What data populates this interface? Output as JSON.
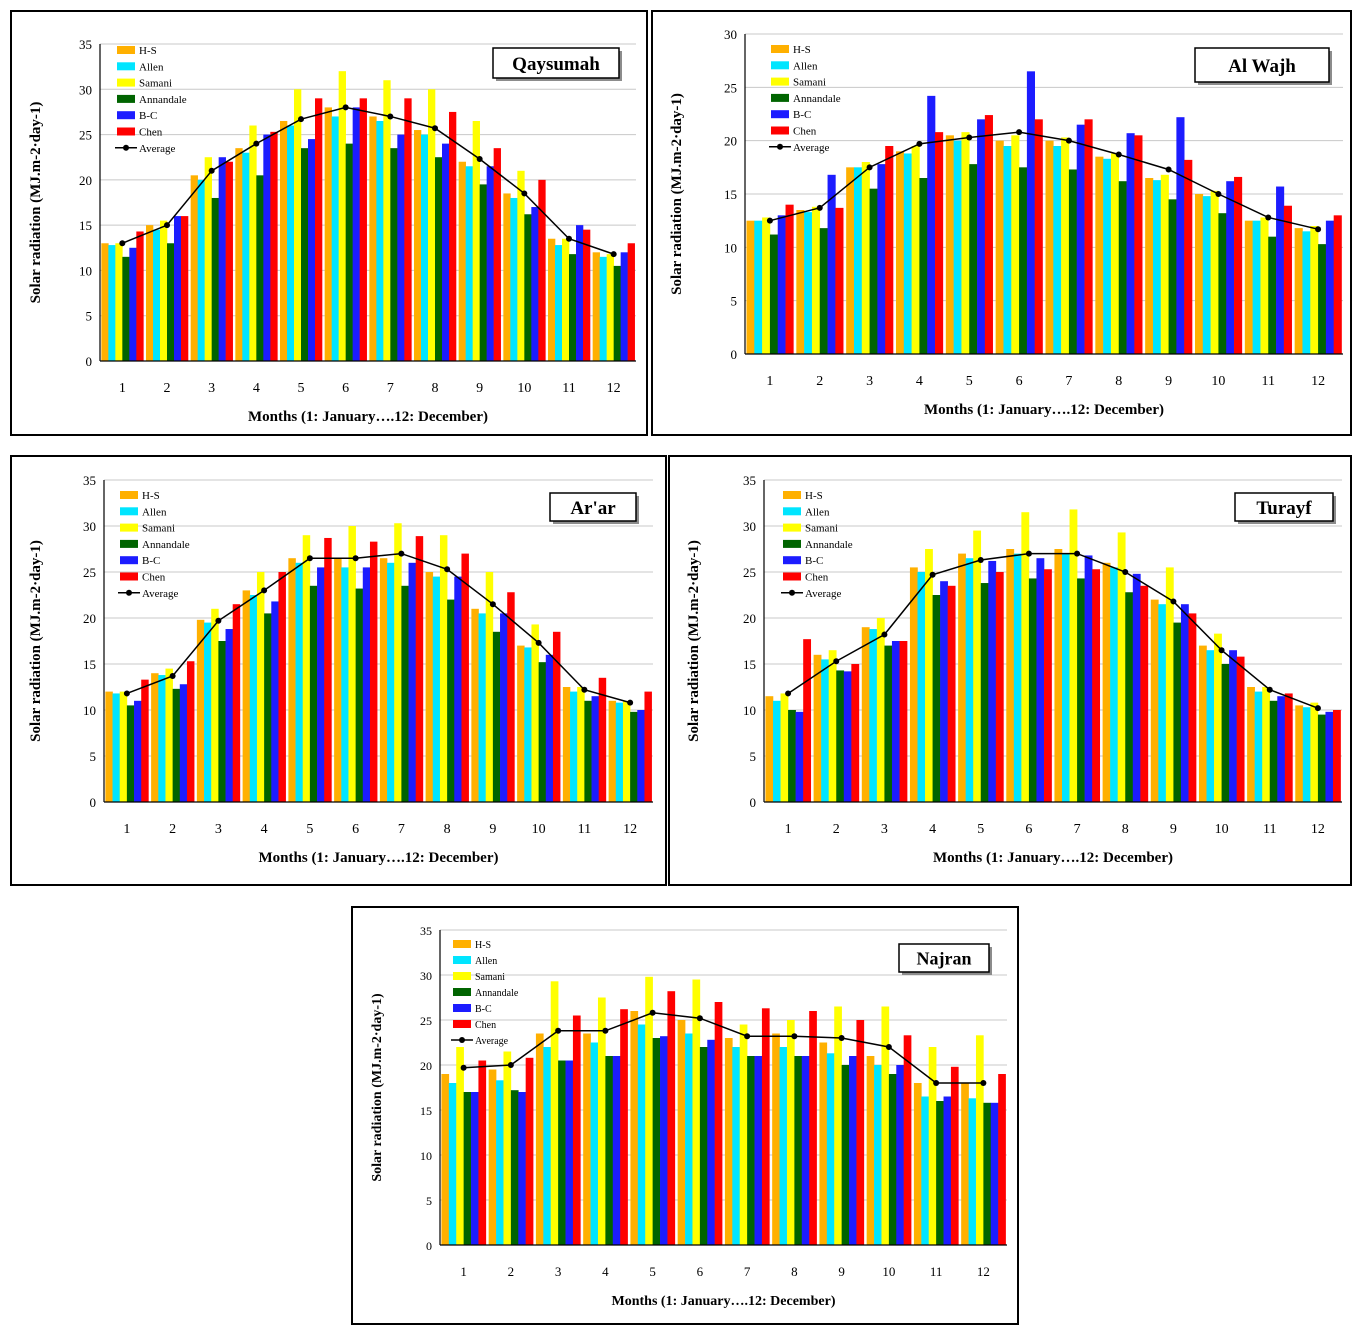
{
  "legend_labels": [
    "H-S",
    "Allen",
    "Samani",
    "Annandale",
    "B-C",
    "Chen",
    "Average"
  ],
  "series_colors": [
    "#FFB000",
    "#00E5FF",
    "#FFFF00",
    "#006400",
    "#1C1CFF",
    "#FF0000",
    "#000000"
  ],
  "chart_data": [
    {
      "type": "bar",
      "title": "Qaysumah",
      "xlabel": "Months (1: January….12:  December)",
      "ylabel": "Solar radiation (MJ.m-2·day-1)",
      "ylim": [
        0,
        35
      ],
      "yticks": [
        "0",
        "5",
        "10",
        "15",
        "20",
        "25",
        "30",
        "35"
      ],
      "categories": [
        "1",
        "2",
        "3",
        "4",
        "5",
        "6",
        "7",
        "8",
        "9",
        "10",
        "11",
        "12"
      ],
      "grid": true,
      "legend_position": "top-left",
      "series": [
        {
          "name": "H-S",
          "values": [
            13.0,
            15.0,
            20.5,
            23.5,
            26.5,
            28.0,
            27.0,
            25.5,
            22.0,
            18.5,
            13.5,
            12.0
          ]
        },
        {
          "name": "Allen",
          "values": [
            12.8,
            14.5,
            20.0,
            23.0,
            26.0,
            27.0,
            26.5,
            25.0,
            21.5,
            18.0,
            12.8,
            11.5
          ]
        },
        {
          "name": "Samani",
          "values": [
            13.0,
            15.5,
            22.5,
            26.0,
            30.0,
            32.0,
            31.0,
            30.0,
            26.5,
            21.0,
            13.5,
            11.8
          ]
        },
        {
          "name": "Annandale",
          "values": [
            11.5,
            13.0,
            18.0,
            20.5,
            23.5,
            24.0,
            23.5,
            22.5,
            19.5,
            16.2,
            11.8,
            10.5
          ]
        },
        {
          "name": "B-C",
          "values": [
            12.5,
            16.0,
            22.5,
            25.0,
            24.5,
            28.0,
            25.0,
            24.0,
            21.5,
            17.0,
            15.0,
            12.0
          ]
        },
        {
          "name": "Chen",
          "values": [
            14.3,
            16.0,
            22.0,
            25.3,
            29.0,
            29.0,
            29.0,
            27.5,
            23.5,
            20.0,
            14.5,
            13.0
          ]
        },
        {
          "name": "Average",
          "type": "line",
          "values": [
            13.0,
            15.0,
            21.0,
            24.0,
            26.7,
            28.0,
            27.0,
            25.7,
            22.3,
            18.5,
            13.5,
            11.8
          ]
        }
      ]
    },
    {
      "type": "bar",
      "title": "Al Wajh",
      "xlabel": "Months (1: January….12:  December)",
      "ylabel": "Solar radiation (MJ.m-2·day-1)",
      "ylim": [
        0,
        30
      ],
      "yticks": [
        "0",
        "5",
        "10",
        "15",
        "20",
        "25",
        "30"
      ],
      "categories": [
        "1",
        "2",
        "3",
        "4",
        "5",
        "6",
        "7",
        "8",
        "9",
        "10",
        "11",
        "12"
      ],
      "grid": true,
      "legend_position": "top-left",
      "series": [
        {
          "name": "H-S",
          "values": [
            12.5,
            13.5,
            17.5,
            19.0,
            20.5,
            20.0,
            20.0,
            18.5,
            16.5,
            15.0,
            12.5,
            11.8
          ]
        },
        {
          "name": "Allen",
          "values": [
            12.5,
            13.3,
            17.5,
            18.8,
            20.0,
            19.5,
            19.5,
            18.3,
            16.3,
            14.8,
            12.5,
            11.5
          ]
        },
        {
          "name": "Samani",
          "values": [
            12.8,
            13.8,
            18.0,
            19.5,
            20.8,
            20.5,
            20.3,
            18.8,
            16.8,
            15.3,
            12.8,
            12.0
          ]
        },
        {
          "name": "Annandale",
          "values": [
            11.2,
            11.8,
            15.5,
            16.5,
            17.8,
            17.5,
            17.3,
            16.2,
            14.5,
            13.2,
            11.0,
            10.3
          ]
        },
        {
          "name": "B-C",
          "values": [
            13.0,
            16.8,
            17.8,
            24.2,
            22.0,
            26.5,
            21.5,
            20.7,
            22.2,
            16.2,
            15.7,
            12.5
          ]
        },
        {
          "name": "Chen",
          "values": [
            14.0,
            13.7,
            19.5,
            20.8,
            22.4,
            22.0,
            22.0,
            20.5,
            18.2,
            16.6,
            13.9,
            13.0
          ]
        },
        {
          "name": "Average",
          "type": "line",
          "values": [
            12.5,
            13.7,
            17.5,
            19.7,
            20.3,
            20.8,
            20.0,
            18.7,
            17.3,
            15.0,
            12.8,
            11.7
          ]
        }
      ]
    },
    {
      "type": "bar",
      "title": "Ar'ar",
      "xlabel": "Months (1: January….12:  December)",
      "ylabel": "Solar radiation (MJ.m-2·day-1)",
      "ylim": [
        0,
        35
      ],
      "yticks": [
        "0",
        "5",
        "10",
        "15",
        "20",
        "25",
        "30",
        "35"
      ],
      "categories": [
        "1",
        "2",
        "3",
        "4",
        "5",
        "6",
        "7",
        "8",
        "9",
        "10",
        "11",
        "12"
      ],
      "grid": true,
      "legend_position": "top-left",
      "series": [
        {
          "name": "H-S",
          "values": [
            12.0,
            14.0,
            19.8,
            23.0,
            26.5,
            26.5,
            26.5,
            25.0,
            21.0,
            17.0,
            12.5,
            11.0
          ]
        },
        {
          "name": "Allen",
          "values": [
            11.8,
            13.8,
            19.5,
            22.5,
            26.0,
            25.5,
            26.0,
            24.5,
            20.5,
            16.8,
            12.0,
            10.8
          ]
        },
        {
          "name": "Samani",
          "values": [
            12.0,
            14.5,
            21.0,
            25.0,
            29.0,
            30.0,
            30.3,
            29.0,
            25.0,
            19.3,
            12.5,
            11.0
          ]
        },
        {
          "name": "Annandale",
          "values": [
            10.5,
            12.3,
            17.5,
            20.5,
            23.5,
            23.2,
            23.5,
            22.0,
            18.5,
            15.2,
            11.0,
            9.8
          ]
        },
        {
          "name": "B-C",
          "values": [
            11.0,
            12.8,
            18.8,
            21.8,
            25.5,
            25.5,
            26.0,
            24.5,
            20.5,
            16.0,
            11.5,
            10.0
          ]
        },
        {
          "name": "Chen",
          "values": [
            13.3,
            15.3,
            21.5,
            25.0,
            28.7,
            28.3,
            28.9,
            27.0,
            22.8,
            18.5,
            13.5,
            12.0
          ]
        },
        {
          "name": "Average",
          "type": "line",
          "values": [
            11.8,
            13.7,
            19.7,
            23.0,
            26.5,
            26.5,
            27.0,
            25.3,
            21.5,
            17.3,
            12.2,
            10.8
          ]
        }
      ]
    },
    {
      "type": "bar",
      "title": "Turayf",
      "xlabel": "Months (1: January….12:  December)",
      "ylabel": "Solar radiation (MJ.m-2·day-1)",
      "ylim": [
        0,
        35
      ],
      "yticks": [
        "0",
        "5",
        "10",
        "15",
        "20",
        "25",
        "30",
        "35"
      ],
      "categories": [
        "1",
        "2",
        "3",
        "4",
        "5",
        "6",
        "7",
        "8",
        "9",
        "10",
        "11",
        "12"
      ],
      "grid": true,
      "legend_position": "top-left",
      "series": [
        {
          "name": "H-S",
          "values": [
            11.5,
            16.0,
            19.0,
            25.5,
            27.0,
            27.5,
            27.5,
            26.0,
            22.0,
            17.0,
            12.5,
            10.5
          ]
        },
        {
          "name": "Allen",
          "values": [
            11.0,
            15.5,
            18.8,
            25.0,
            26.5,
            27.0,
            27.0,
            25.5,
            21.5,
            16.5,
            12.0,
            10.3
          ]
        },
        {
          "name": "Samani",
          "values": [
            11.8,
            16.5,
            20.0,
            27.5,
            29.5,
            31.5,
            31.8,
            29.3,
            25.5,
            18.3,
            12.5,
            10.8
          ]
        },
        {
          "name": "Annandale",
          "values": [
            10.0,
            14.3,
            17.0,
            22.5,
            23.8,
            24.3,
            24.3,
            22.8,
            19.5,
            15.0,
            11.0,
            9.5
          ]
        },
        {
          "name": "B-C",
          "values": [
            9.8,
            14.2,
            17.5,
            24.0,
            26.2,
            26.5,
            26.8,
            24.8,
            21.5,
            16.5,
            11.5,
            9.8
          ]
        },
        {
          "name": "Chen",
          "values": [
            17.7,
            15.0,
            17.5,
            23.5,
            25.0,
            25.3,
            25.3,
            23.5,
            20.5,
            15.8,
            11.8,
            10.0
          ]
        },
        {
          "name": "Average",
          "type": "line",
          "values": [
            11.8,
            15.3,
            18.2,
            24.7,
            26.3,
            27.0,
            27.0,
            25.0,
            21.8,
            16.5,
            12.2,
            10.2
          ]
        }
      ]
    },
    {
      "type": "bar",
      "title": "Najran",
      "xlabel": "Months (1: January….12:  December)",
      "ylabel": "Solar radiation (MJ.m-2·day-1)",
      "ylim": [
        0,
        35
      ],
      "yticks": [
        "0",
        "5",
        "10",
        "15",
        "20",
        "25",
        "30",
        "35"
      ],
      "categories": [
        "1",
        "2",
        "3",
        "4",
        "5",
        "6",
        "7",
        "8",
        "9",
        "10",
        "11",
        "12"
      ],
      "grid": true,
      "legend_position": "top-left",
      "series": [
        {
          "name": "H-S",
          "values": [
            19.0,
            19.5,
            23.5,
            23.5,
            26.0,
            25.0,
            23.0,
            23.5,
            22.5,
            21.0,
            18.0,
            18.0
          ]
        },
        {
          "name": "Allen",
          "values": [
            18.0,
            18.3,
            22.0,
            22.5,
            24.5,
            23.5,
            22.0,
            22.0,
            21.3,
            20.0,
            16.5,
            16.3
          ]
        },
        {
          "name": "Samani",
          "values": [
            22.0,
            21.5,
            29.3,
            27.5,
            29.8,
            29.5,
            24.5,
            25.0,
            26.5,
            26.5,
            22.0,
            23.3
          ]
        },
        {
          "name": "Annandale",
          "values": [
            17.0,
            17.2,
            20.5,
            21.0,
            23.0,
            22.0,
            21.0,
            21.0,
            20.0,
            19.0,
            16.0,
            15.8
          ]
        },
        {
          "name": "B-C",
          "values": [
            17.0,
            17.0,
            20.5,
            21.0,
            23.2,
            22.8,
            21.0,
            21.0,
            21.0,
            20.0,
            16.5,
            15.8
          ]
        },
        {
          "name": "Chen",
          "values": [
            20.5,
            20.8,
            25.5,
            26.2,
            28.2,
            27.0,
            26.3,
            26.0,
            25.0,
            23.3,
            19.8,
            19.0
          ]
        },
        {
          "name": "Average",
          "type": "line",
          "values": [
            19.7,
            20.0,
            23.8,
            23.8,
            25.8,
            25.2,
            23.2,
            23.2,
            23.0,
            22.0,
            18.0,
            18.0
          ]
        }
      ]
    }
  ]
}
